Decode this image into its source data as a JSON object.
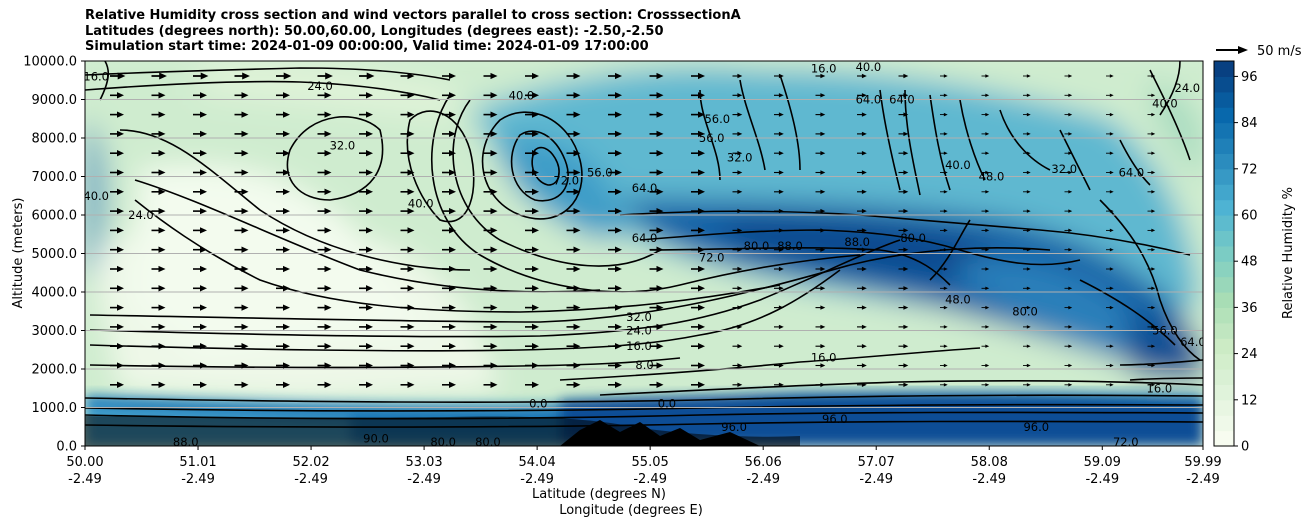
{
  "title_lines": [
    "Relative Humidity cross section and wind vectors parallel to cross section: CrosssectionA",
    "Latitudes (degrees north): 50.00,60.00, Longitudes (degrees east): -2.50,-2.50",
    "Simulation start time: 2024-01-09 00:00:00, Valid time: 2024-01-09 17:00:00"
  ],
  "chart_data": {
    "type": "heatmap",
    "field": "Relative Humidity %",
    "ylabel": "Altitude (meters)",
    "xlabel_1": "Latitude (degrees N)",
    "xlabel_2": "Longitude (degrees E)",
    "ylim": [
      0,
      10000
    ],
    "y_ticks": [
      "0.0",
      "1000.0",
      "2000.0",
      "3000.0",
      "4000.0",
      "5000.0",
      "6000.0",
      "7000.0",
      "8000.0",
      "9000.0",
      "10000.0"
    ],
    "x_ticks_lat": [
      "50.00",
      "51.01",
      "52.02",
      "53.03",
      "54.04",
      "55.05",
      "56.06",
      "57.07",
      "58.08",
      "59.09",
      "59.99"
    ],
    "x_ticks_lon": [
      "-2.49",
      "-2.49",
      "-2.49",
      "-2.49",
      "-2.49",
      "-2.49",
      "-2.49",
      "-2.49",
      "-2.49",
      "-2.49",
      "-2.49"
    ],
    "colorbar": {
      "label": "Relative Humidity %",
      "range": [
        0,
        100
      ],
      "ticks": [
        "0",
        "12",
        "24",
        "36",
        "48",
        "60",
        "72",
        "84",
        "96"
      ],
      "levels": 25,
      "colormap": "GnBu",
      "colors": [
        "#f7fcf0",
        "#e0f3db",
        "#ccebc5",
        "#a8ddb5",
        "#7bccc4",
        "#4eb3d3",
        "#2b8cbe",
        "#0868ac",
        "#084081"
      ]
    },
    "quiver_key": "50 m/s",
    "gridlines": "horizontal",
    "contour_labels": [
      {
        "text": "16.0",
        "lat": 50.1,
        "alt": 9600
      },
      {
        "text": "24.0",
        "lat": 52.1,
        "alt": 9350
      },
      {
        "text": "32.0",
        "lat": 52.3,
        "alt": 7800
      },
      {
        "text": "40.0",
        "lat": 53.0,
        "alt": 6300
      },
      {
        "text": "40.0",
        "lat": 53.9,
        "alt": 9100
      },
      {
        "text": "72.0",
        "lat": 54.3,
        "alt": 6900
      },
      {
        "text": "56.0",
        "lat": 54.6,
        "alt": 7100
      },
      {
        "text": "64.0",
        "lat": 55.0,
        "alt": 6700
      },
      {
        "text": "56.0",
        "lat": 55.6,
        "alt": 8000
      },
      {
        "text": "56.0",
        "lat": 55.65,
        "alt": 8500
      },
      {
        "text": "32.0",
        "lat": 55.85,
        "alt": 7500
      },
      {
        "text": "64.0",
        "lat": 55.0,
        "alt": 5400
      },
      {
        "text": "72.0",
        "lat": 55.6,
        "alt": 4900
      },
      {
        "text": "80.0",
        "lat": 56.0,
        "alt": 5200
      },
      {
        "text": "88.0",
        "lat": 56.3,
        "alt": 5200
      },
      {
        "text": "88.0",
        "lat": 56.9,
        "alt": 5300
      },
      {
        "text": "80.0",
        "lat": 57.4,
        "alt": 5400
      },
      {
        "text": "64.0",
        "lat": 57.0,
        "alt": 9000
      },
      {
        "text": "64.0",
        "lat": 57.3,
        "alt": 9000
      },
      {
        "text": "48.0",
        "lat": 57.8,
        "alt": 3800
      },
      {
        "text": "40.0",
        "lat": 57.8,
        "alt": 7300
      },
      {
        "text": "48.0",
        "lat": 58.1,
        "alt": 7000
      },
      {
        "text": "16.0",
        "lat": 56.6,
        "alt": 9800
      },
      {
        "text": "40.0",
        "lat": 57.0,
        "alt": 9850
      },
      {
        "text": "80.0",
        "lat": 58.4,
        "alt": 3500
      },
      {
        "text": "32.0",
        "lat": 54.95,
        "alt": 3350
      },
      {
        "text": "24.0",
        "lat": 54.95,
        "alt": 3000
      },
      {
        "text": "16.0",
        "lat": 54.95,
        "alt": 2600
      },
      {
        "text": "8.0",
        "lat": 55.0,
        "alt": 2100
      },
      {
        "text": "16.0",
        "lat": 56.6,
        "alt": 2300
      },
      {
        "text": "96.0",
        "lat": 55.8,
        "alt": 500
      },
      {
        "text": "96.0",
        "lat": 56.7,
        "alt": 700
      },
      {
        "text": "96.0",
        "lat": 58.5,
        "alt": 500
      },
      {
        "text": "88.0",
        "lat": 50.9,
        "alt": 100
      },
      {
        "text": "80.0",
        "lat": 53.2,
        "alt": 100
      },
      {
        "text": "80.0",
        "lat": 53.6,
        "alt": 100
      },
      {
        "text": "90.0",
        "lat": 52.6,
        "alt": 200
      },
      {
        "text": "72.0",
        "lat": 59.3,
        "alt": 100
      },
      {
        "text": "0.0",
        "lat": 54.05,
        "alt": 1100
      },
      {
        "text": "0.0",
        "lat": 55.2,
        "alt": 1100
      },
      {
        "text": "16.0",
        "lat": 59.6,
        "alt": 1500
      },
      {
        "text": "64.0",
        "lat": 59.9,
        "alt": 2700
      },
      {
        "text": "56.0",
        "lat": 59.65,
        "alt": 3000
      },
      {
        "text": "24.0",
        "lat": 59.85,
        "alt": 9300
      },
      {
        "text": "40.0",
        "lat": 59.65,
        "alt": 8900
      },
      {
        "text": "64.0",
        "lat": 59.35,
        "alt": 7100
      },
      {
        "text": "32.0",
        "lat": 58.75,
        "alt": 7200
      },
      {
        "text": "40.0",
        "lat": 50.1,
        "alt": 6500
      },
      {
        "text": "24.0",
        "lat": 50.5,
        "alt": 6000
      }
    ]
  }
}
